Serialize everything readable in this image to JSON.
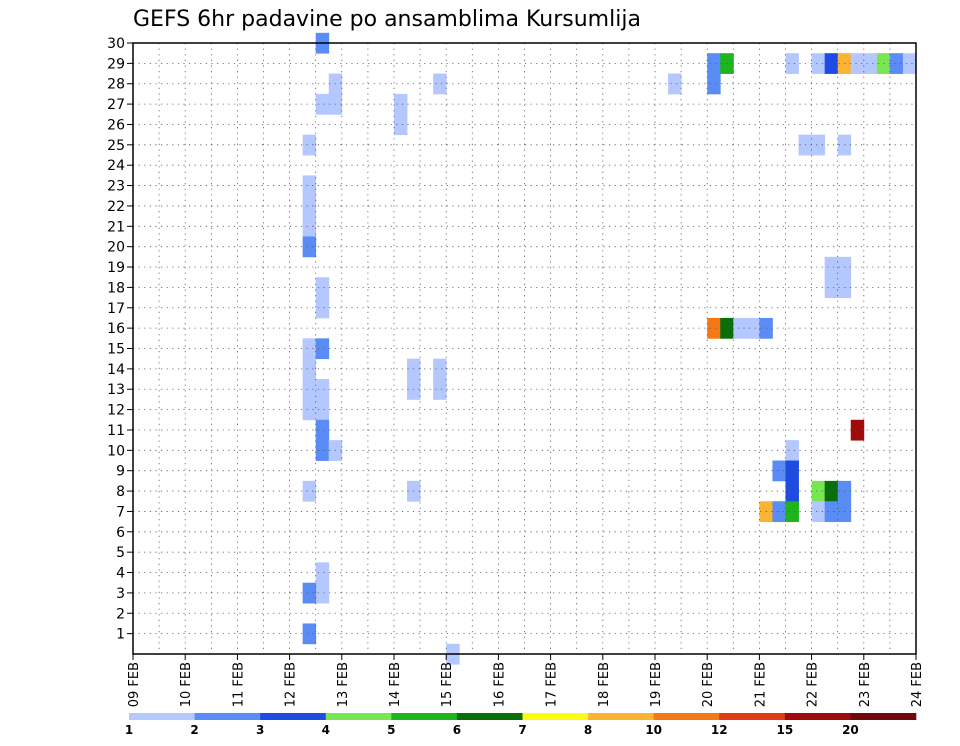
{
  "chart_data": {
    "type": "heatmap",
    "title": "GEFS 6hr padavine po ansamblima Kursumlija",
    "x_tick_labels": [
      "09 FEB",
      "10 FEB",
      "11 FEB",
      "12 FEB",
      "13 FEB",
      "14 FEB",
      "15 FEB",
      "16 FEB",
      "17 FEB",
      "18 FEB",
      "19 FEB",
      "20 FEB",
      "21 FEB",
      "22 FEB",
      "23 FEB",
      "24 FEB"
    ],
    "x_range_days": [
      9,
      24
    ],
    "x_step_days": 0.25,
    "y_tick_labels": [
      "1",
      "2",
      "3",
      "4",
      "5",
      "6",
      "7",
      "8",
      "9",
      "10",
      "11",
      "12",
      "13",
      "14",
      "15",
      "16",
      "17",
      "18",
      "19",
      "20",
      "21",
      "22",
      "23",
      "24",
      "25",
      "26",
      "27",
      "28",
      "29",
      "30"
    ],
    "y_range": [
      0,
      30
    ],
    "grid": true,
    "legend_position": "bottom",
    "legend": {
      "boundaries": [
        "1",
        "2",
        "3",
        "4",
        "5",
        "6",
        "7",
        "8",
        "10",
        "12",
        "15",
        "20"
      ],
      "colors": [
        "#b4c8ff",
        "#5a8cf5",
        "#1e4be1",
        "#78e650",
        "#1eb41e",
        "#0a6e0a",
        "#fafa14",
        "#fab432",
        "#f57814",
        "#e13c14",
        "#a00a0a",
        "#6e0a0a"
      ]
    },
    "cells_format": "[member, day_of_february, color_class_index]",
    "cells": [
      [
        30,
        12.5,
        1
      ],
      [
        29,
        20.0,
        1
      ],
      [
        29,
        20.25,
        4
      ],
      [
        29,
        21.5,
        0
      ],
      [
        29,
        22.0,
        0
      ],
      [
        29,
        22.25,
        2
      ],
      [
        29,
        22.5,
        7
      ],
      [
        29,
        22.75,
        0
      ],
      [
        29,
        23.0,
        0
      ],
      [
        29,
        23.25,
        3
      ],
      [
        29,
        23.5,
        1
      ],
      [
        29,
        23.75,
        0
      ],
      [
        28,
        12.75,
        0
      ],
      [
        28,
        14.75,
        0
      ],
      [
        28,
        19.25,
        0
      ],
      [
        28,
        20.0,
        1
      ],
      [
        27,
        12.5,
        0
      ],
      [
        27,
        12.75,
        0
      ],
      [
        27,
        14.0,
        0
      ],
      [
        26,
        14.0,
        0
      ],
      [
        25,
        12.25,
        0
      ],
      [
        25,
        21.75,
        0
      ],
      [
        25,
        22.0,
        0
      ],
      [
        25,
        22.5,
        0
      ],
      [
        23,
        12.25,
        0
      ],
      [
        22,
        12.25,
        0
      ],
      [
        21,
        12.25,
        0
      ],
      [
        20,
        12.25,
        1
      ],
      [
        19,
        22.25,
        0
      ],
      [
        19,
        22.5,
        0
      ],
      [
        18,
        22.25,
        0
      ],
      [
        18,
        22.5,
        0
      ],
      [
        18,
        12.5,
        0
      ],
      [
        17,
        12.5,
        0
      ],
      [
        16,
        20.0,
        8
      ],
      [
        16,
        20.25,
        5
      ],
      [
        16,
        20.5,
        0
      ],
      [
        16,
        20.75,
        0
      ],
      [
        16,
        21.0,
        1
      ],
      [
        15,
        12.25,
        0
      ],
      [
        15,
        12.5,
        1
      ],
      [
        14,
        12.25,
        0
      ],
      [
        14,
        14.25,
        0
      ],
      [
        14,
        14.75,
        0
      ],
      [
        13,
        14.25,
        0
      ],
      [
        13,
        14.75,
        0
      ],
      [
        13,
        12.25,
        0
      ],
      [
        13,
        12.5,
        0
      ],
      [
        12,
        12.25,
        0
      ],
      [
        12,
        12.5,
        0
      ],
      [
        11,
        12.5,
        1
      ],
      [
        10,
        12.5,
        1
      ],
      [
        10,
        12.75,
        0
      ],
      [
        11,
        22.75,
        10
      ],
      [
        10,
        21.5,
        0
      ],
      [
        9,
        21.25,
        1
      ],
      [
        9,
        21.5,
        2
      ],
      [
        8,
        21.5,
        2
      ],
      [
        8,
        12.25,
        0
      ],
      [
        8,
        14.25,
        0
      ],
      [
        8,
        22.0,
        3
      ],
      [
        8,
        22.25,
        5
      ],
      [
        8,
        22.5,
        1
      ],
      [
        7,
        21.0,
        7
      ],
      [
        7,
        21.25,
        1
      ],
      [
        7,
        21.5,
        4
      ],
      [
        7,
        22.0,
        0
      ],
      [
        7,
        22.25,
        1
      ],
      [
        7,
        22.5,
        1
      ],
      [
        4,
        12.5,
        0
      ],
      [
        3,
        12.5,
        0
      ],
      [
        3,
        12.25,
        1
      ],
      [
        1,
        12.25,
        1
      ],
      [
        0,
        15.0,
        0
      ]
    ]
  }
}
